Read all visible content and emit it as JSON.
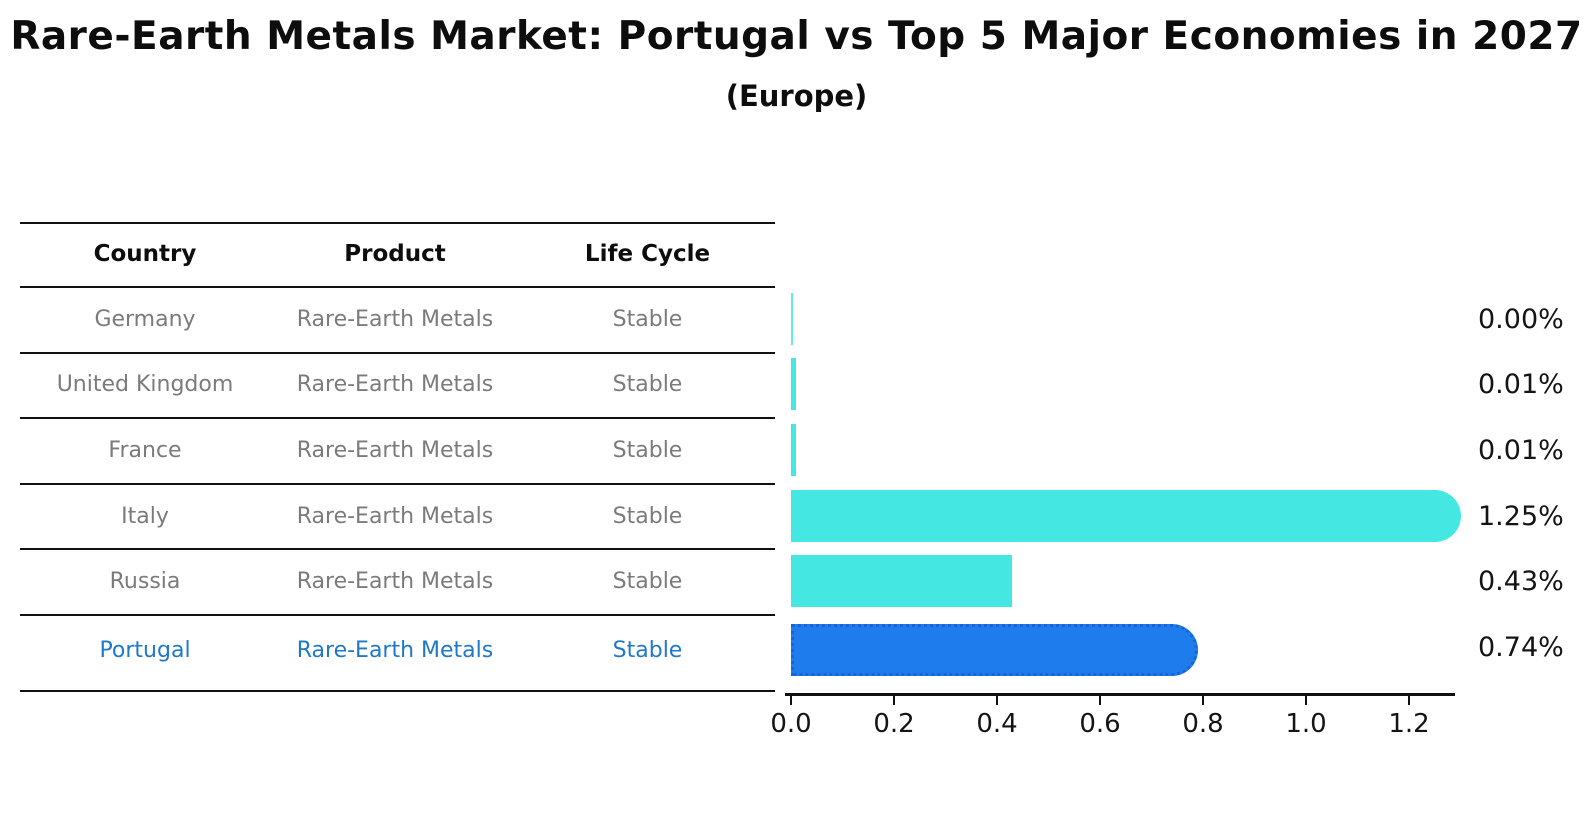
{
  "title": "Rare-Earth Metals Market: Portugal vs Top 5 Major Economies in 2027",
  "subtitle": "(Europe)",
  "table": {
    "headers": [
      "Country",
      "Product",
      "Life Cycle"
    ]
  },
  "chart_data": {
    "type": "bar",
    "orientation": "horizontal",
    "title": "Rare-Earth Metals Market: Portugal vs Top 5 Major Economies in 2027 (Europe)",
    "xlabel": "",
    "ylabel": "",
    "xlim": [
      0,
      1.3
    ],
    "x_ticks": [
      "0.0",
      "0.2",
      "0.4",
      "0.6",
      "0.8",
      "1.0",
      "1.2"
    ],
    "grid": false,
    "legend": "none",
    "rows": [
      {
        "country": "Germany",
        "product": "Rare-Earth Metals",
        "life_cycle": "Stable",
        "value": 0.0,
        "label": "0.00%",
        "highlight": false,
        "rounded": false
      },
      {
        "country": "United Kingdom",
        "product": "Rare-Earth Metals",
        "life_cycle": "Stable",
        "value": 0.01,
        "label": "0.01%",
        "highlight": false,
        "rounded": false
      },
      {
        "country": "France",
        "product": "Rare-Earth Metals",
        "life_cycle": "Stable",
        "value": 0.01,
        "label": "0.01%",
        "highlight": false,
        "rounded": false
      },
      {
        "country": "Italy",
        "product": "Rare-Earth Metals",
        "life_cycle": "Stable",
        "value": 1.25,
        "label": "1.25%",
        "highlight": false,
        "rounded": true
      },
      {
        "country": "Russia",
        "product": "Rare-Earth Metals",
        "life_cycle": "Stable",
        "value": 0.43,
        "label": "0.43%",
        "highlight": false,
        "rounded": false
      },
      {
        "country": "Portugal",
        "product": "Rare-Earth Metals",
        "life_cycle": "Stable",
        "value": 0.74,
        "label": "0.74%",
        "highlight": true,
        "rounded": true
      }
    ]
  },
  "colors": {
    "bar_cyan": "#45E7E2",
    "bar_blue": "#1E7CEC",
    "bar_blue_border": "#1565D8",
    "highlight_text": "#1F78C8",
    "row_text": "#7B7B7B",
    "axis": "#111111"
  }
}
